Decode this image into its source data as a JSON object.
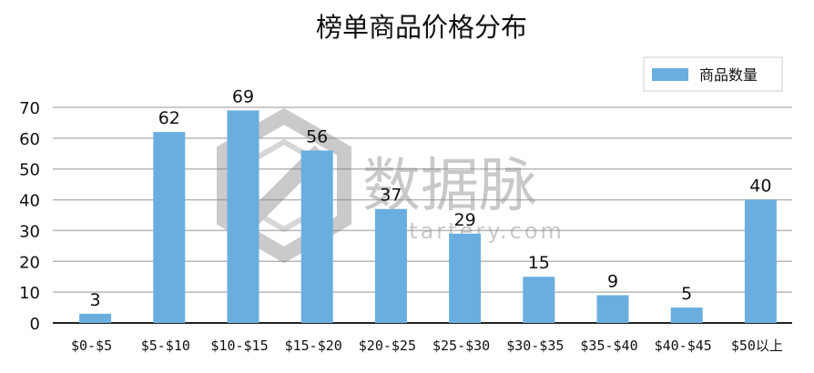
{
  "chart_data": {
    "type": "bar",
    "title": "榜单商品价格分布",
    "xlabel": "",
    "ylabel": "",
    "categories": [
      "$0-$5",
      "$5-$10",
      "$10-$15",
      "$15-$20",
      "$20-$25",
      "$25-$30",
      "$30-$35",
      "$35-$40",
      "$40-$45",
      "$50以上"
    ],
    "series": [
      {
        "name": "商品数量",
        "values": [
          3,
          62,
          69,
          56,
          37,
          29,
          15,
          9,
          5,
          40
        ],
        "color": "#6aaee0"
      }
    ],
    "ylim": [
      0,
      70
    ],
    "yticks": [
      0,
      10,
      20,
      30,
      40,
      50,
      60,
      70
    ],
    "grid": true,
    "legend_position": "top-right"
  },
  "watermark": {
    "text": "数据脉",
    "subtext": "Datartery.com",
    "icon": "hexagon-logo-icon"
  }
}
